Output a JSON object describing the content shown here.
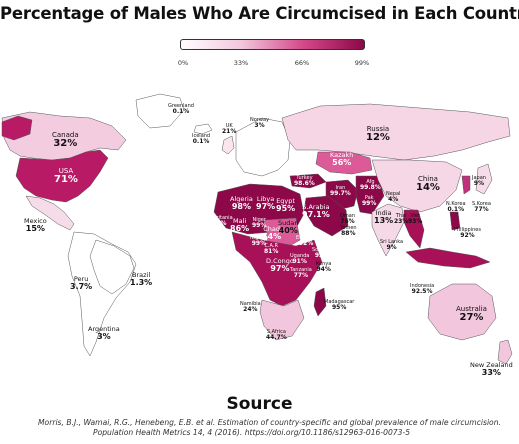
{
  "title": "Percentage of Males Who Are Circumcised in Each Country",
  "legend": {
    "ticks": [
      "0%",
      "33%",
      "66%",
      "99%"
    ],
    "colors": [
      "#ffffff",
      "#f2c6dc",
      "#d4498a",
      "#8c0848"
    ]
  },
  "countries": [
    {
      "id": "greenland",
      "name": "Greenland",
      "value": "0.1%"
    },
    {
      "id": "canada",
      "name": "Canada",
      "value": "32%"
    },
    {
      "id": "usa",
      "name": "USA",
      "value": "71%"
    },
    {
      "id": "mexico",
      "name": "Mexico",
      "value": "15%"
    },
    {
      "id": "peru",
      "name": "Peru",
      "value": "3.7%"
    },
    {
      "id": "brazil",
      "name": "Brazil",
      "value": "1.3%"
    },
    {
      "id": "argentina",
      "name": "Argentina",
      "value": "3%"
    },
    {
      "id": "iceland",
      "name": "Iceland",
      "value": "0.1%"
    },
    {
      "id": "norway",
      "name": "Norway",
      "value": "3%"
    },
    {
      "id": "uk",
      "name": "UK",
      "value": "21%"
    },
    {
      "id": "russia",
      "name": "Russia",
      "value": "12%"
    },
    {
      "id": "kazakhstan",
      "name": "Kazakh",
      "value": "56%"
    },
    {
      "id": "turkey",
      "name": "Turkey",
      "value": "98.6%"
    },
    {
      "id": "iran",
      "name": "Iran",
      "value": "99.7%"
    },
    {
      "id": "afghanistan",
      "name": "Afg",
      "value": "99.8%"
    },
    {
      "id": "pakistan",
      "name": "Pak",
      "value": "99%"
    },
    {
      "id": "india",
      "name": "India",
      "value": "13%"
    },
    {
      "id": "nepal",
      "name": "Nepal",
      "value": "4%"
    },
    {
      "id": "china",
      "name": "China",
      "value": "14%"
    },
    {
      "id": "japan",
      "name": "Japan",
      "value": "9%"
    },
    {
      "id": "nkorea",
      "name": "N.Korea",
      "value": "0.1%"
    },
    {
      "id": "skorea",
      "name": "S.Korea",
      "value": "77%"
    },
    {
      "id": "thailand",
      "name": "Thai",
      "value": "23%"
    },
    {
      "id": "vietnam",
      "name": "Viet",
      "value": "93%"
    },
    {
      "id": "srilanka",
      "name": "Sri Lanka",
      "value": "9%"
    },
    {
      "id": "philippines",
      "name": "Philippines",
      "value": "92%"
    },
    {
      "id": "indonesia",
      "name": "Indonesia",
      "value": "92.5%"
    },
    {
      "id": "australia",
      "name": "Australia",
      "value": "27%"
    },
    {
      "id": "newzealand",
      "name": "New Zealand",
      "value": "33%"
    },
    {
      "id": "algeria",
      "name": "Algeria",
      "value": "98%"
    },
    {
      "id": "libya",
      "name": "Libya",
      "value": "97%"
    },
    {
      "id": "egypt",
      "name": "Egypt",
      "value": "95%"
    },
    {
      "id": "saudi",
      "name": "S.Arabia",
      "value": "97.1%"
    },
    {
      "id": "mauritania",
      "name": "Mauritania",
      "value": "99%"
    },
    {
      "id": "mali",
      "name": "Mali",
      "value": "86%"
    },
    {
      "id": "niger",
      "name": "Niger",
      "value": "99%"
    },
    {
      "id": "nigeria",
      "name": "Nigeria",
      "value": "99%"
    },
    {
      "id": "chad",
      "name": "Chad",
      "value": "74%"
    },
    {
      "id": "sudan",
      "name": "Sudan",
      "value": "40%"
    },
    {
      "id": "ethiopia",
      "name": "Ethiopia",
      "value": "92%"
    },
    {
      "id": "car",
      "name": "C.A.R",
      "value": "81%"
    },
    {
      "id": "drc",
      "name": "D.Congo",
      "value": "97%"
    },
    {
      "id": "somalia",
      "name": "Somalia",
      "value": "93%"
    },
    {
      "id": "kenya",
      "name": "Kenya",
      "value": "94%"
    },
    {
      "id": "uganda",
      "name": "Uganda",
      "value": "91%"
    },
    {
      "id": "tanzania",
      "name": "Tanzania",
      "value": "77%"
    },
    {
      "id": "oman",
      "name": "Oman",
      "value": "76%"
    },
    {
      "id": "yemen",
      "name": "Yemen",
      "value": "88%"
    },
    {
      "id": "namibia",
      "name": "Namibia",
      "value": "24%"
    },
    {
      "id": "southafrica",
      "name": "S.Africa",
      "value": "44.7%"
    },
    {
      "id": "madagascar",
      "name": "Madagascar",
      "value": "95%"
    }
  ],
  "source": {
    "heading": "Source",
    "citation_line1": "Morris, B.J., Wamai, R.G., Henebeng, E.B. et al. Estimation of country-specific and global prevalence of male circumcision.",
    "citation_line2": "Population Health Metrics 14, 4 (2016). https://doi.org/10.1186/s12963-016-0073-5"
  }
}
